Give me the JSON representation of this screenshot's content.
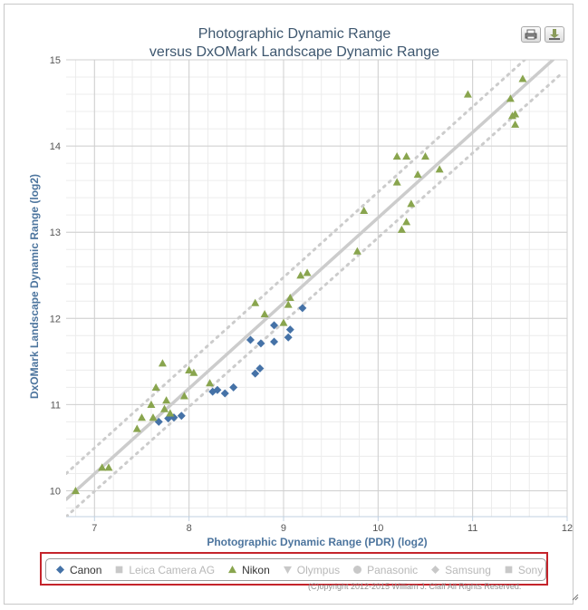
{
  "chart_data": {
    "type": "scatter",
    "title": "Photographic Dynamic Range",
    "subtitle": "versus DxOMark Landscape Dynamic Range",
    "xlabel": "Photographic Dynamic Range (PDR) (log2)",
    "ylabel": "DxOMark Landscape Dynamic Range (log2)",
    "xlim": [
      6.7,
      12
    ],
    "ylim": [
      9.7,
      15
    ],
    "x_ticks": [
      "7",
      "8",
      "9",
      "10",
      "11",
      "12"
    ],
    "y_ticks": [
      "10",
      "11",
      "12",
      "13",
      "14",
      "15"
    ],
    "grid": true,
    "legend_position": "bottom",
    "trend_line": {
      "x": [
        6.7,
        11.85
      ],
      "y": [
        9.9,
        15.0
      ],
      "color": "#cccccc"
    },
    "band_upper": {
      "x": [
        6.7,
        11.55
      ],
      "y": [
        10.2,
        15.0
      ],
      "color": "#cccccc"
    },
    "band_lower": {
      "x": [
        6.7,
        11.95
      ],
      "y": [
        9.7,
        14.85
      ],
      "color": "#cccccc"
    },
    "series": [
      {
        "name": "Canon",
        "marker": "diamond",
        "color": "#4572a7",
        "visible": true,
        "points": [
          [
            7.68,
            10.8
          ],
          [
            7.78,
            10.84
          ],
          [
            7.84,
            10.85
          ],
          [
            7.92,
            10.87
          ],
          [
            8.25,
            11.15
          ],
          [
            8.3,
            11.17
          ],
          [
            8.38,
            11.13
          ],
          [
            8.47,
            11.2
          ],
          [
            8.65,
            11.75
          ],
          [
            8.7,
            11.36
          ],
          [
            8.75,
            11.42
          ],
          [
            8.76,
            11.71
          ],
          [
            8.9,
            11.73
          ],
          [
            8.9,
            11.92
          ],
          [
            9.05,
            11.78
          ],
          [
            9.07,
            11.87
          ],
          [
            9.2,
            12.12
          ]
        ]
      },
      {
        "name": "Leica Camera AG",
        "marker": "square",
        "color": "#b8b8b8",
        "visible": false,
        "points": []
      },
      {
        "name": "Nikon",
        "marker": "triangle",
        "color": "#89a54e",
        "visible": true,
        "points": [
          [
            6.8,
            10.0
          ],
          [
            7.08,
            10.27
          ],
          [
            7.15,
            10.27
          ],
          [
            7.45,
            10.72
          ],
          [
            7.5,
            10.85
          ],
          [
            7.6,
            11.0
          ],
          [
            7.62,
            10.85
          ],
          [
            7.65,
            11.2
          ],
          [
            7.72,
            11.48
          ],
          [
            7.74,
            10.95
          ],
          [
            7.76,
            11.05
          ],
          [
            7.8,
            10.9
          ],
          [
            7.95,
            11.1
          ],
          [
            8.0,
            11.4
          ],
          [
            8.05,
            11.37
          ],
          [
            8.22,
            11.25
          ],
          [
            8.7,
            12.18
          ],
          [
            8.8,
            12.05
          ],
          [
            9.0,
            11.95
          ],
          [
            9.05,
            12.16
          ],
          [
            9.07,
            12.24
          ],
          [
            9.18,
            12.5
          ],
          [
            9.25,
            12.53
          ],
          [
            9.78,
            12.78
          ],
          [
            9.85,
            13.25
          ],
          [
            10.2,
            13.88
          ],
          [
            10.2,
            13.58
          ],
          [
            10.25,
            13.03
          ],
          [
            10.3,
            13.12
          ],
          [
            10.3,
            13.88
          ],
          [
            10.35,
            13.33
          ],
          [
            10.42,
            13.67
          ],
          [
            10.5,
            13.88
          ],
          [
            10.65,
            13.73
          ],
          [
            10.95,
            14.6
          ],
          [
            11.4,
            14.55
          ],
          [
            11.42,
            14.35
          ],
          [
            11.45,
            14.37
          ],
          [
            11.45,
            14.25
          ],
          [
            11.53,
            14.78
          ]
        ]
      },
      {
        "name": "Olympus",
        "marker": "triangle-down",
        "color": "#b8b8b8",
        "visible": false,
        "points": []
      },
      {
        "name": "Panasonic",
        "marker": "circle",
        "color": "#b8b8b8",
        "visible": false,
        "points": []
      },
      {
        "name": "Samsung",
        "marker": "diamond",
        "color": "#b8b8b8",
        "visible": false,
        "points": []
      },
      {
        "name": "Sony",
        "marker": "square",
        "color": "#b8b8b8",
        "visible": false,
        "points": []
      }
    ]
  },
  "toolbar": {
    "print_icon": "printer-icon",
    "export_icon": "download-icon"
  },
  "credit": "(C)opyright 2012-2015 William J. Claff All Rights Reserved.",
  "colors": {
    "title": "#3e576f",
    "axis_label": "#4d759e",
    "grid": "#d8d8d8",
    "legend_border": "#c4242b"
  }
}
